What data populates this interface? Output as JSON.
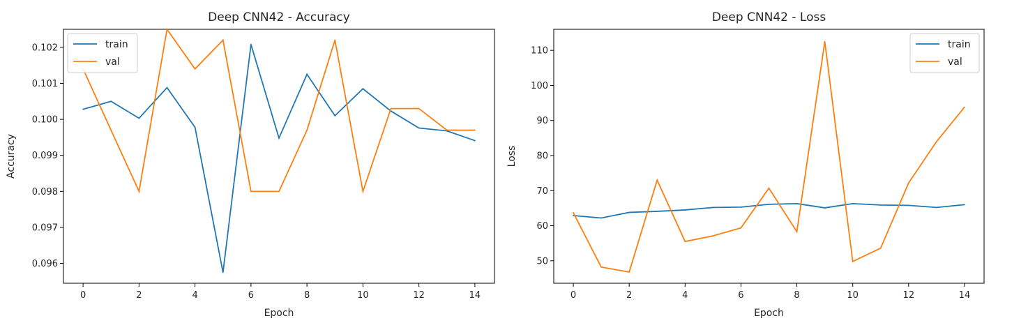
{
  "chart_data": [
    {
      "type": "line",
      "title": "Deep CNN42 - Accuracy",
      "xlabel": "Epoch",
      "ylabel": "Accuracy",
      "x": [
        0,
        1,
        2,
        3,
        4,
        5,
        6,
        7,
        8,
        9,
        10,
        11,
        12,
        13,
        14
      ],
      "xlim": [
        -0.7,
        14.7
      ],
      "ylim": [
        0.09545,
        0.1025
      ],
      "xticks": [
        0,
        2,
        4,
        6,
        8,
        10,
        12,
        14
      ],
      "xtick_labels": [
        "0",
        "2",
        "4",
        "6",
        "8",
        "10",
        "12",
        "14"
      ],
      "yticks": [
        0.096,
        0.097,
        0.098,
        0.099,
        0.1,
        0.101,
        0.102
      ],
      "ytick_labels": [
        "0.096",
        "0.097",
        "0.098",
        "0.099",
        "0.100",
        "0.101",
        "0.102"
      ],
      "grid": false,
      "legend": "top-left",
      "series": [
        {
          "name": "train",
          "color": "#1f77b4",
          "values": [
            0.10028,
            0.1005,
            0.10003,
            0.10088,
            0.09978,
            0.09575,
            0.10208,
            0.09948,
            0.10125,
            0.1001,
            0.10085,
            0.10023,
            0.09976,
            0.09968,
            0.09941
          ]
        },
        {
          "name": "val",
          "color": "#ff7f0e",
          "values": [
            0.1014,
            0.0997,
            0.098,
            0.1025,
            0.1014,
            0.1022,
            0.098,
            0.098,
            0.0997,
            0.1022,
            0.098,
            0.1003,
            0.1003,
            0.0997,
            0.0997
          ]
        }
      ]
    },
    {
      "type": "line",
      "title": "Deep CNN42 - Loss",
      "xlabel": "Epoch",
      "ylabel": "Loss",
      "x": [
        0,
        1,
        2,
        3,
        4,
        5,
        6,
        7,
        8,
        9,
        10,
        11,
        12,
        13,
        14
      ],
      "xlim": [
        -0.7,
        14.7
      ],
      "ylim": [
        43.6,
        116.0
      ],
      "xticks": [
        0,
        2,
        4,
        6,
        8,
        10,
        12,
        14
      ],
      "xtick_labels": [
        "0",
        "2",
        "4",
        "6",
        "8",
        "10",
        "12",
        "14"
      ],
      "yticks": [
        50,
        60,
        70,
        80,
        90,
        100,
        110
      ],
      "ytick_labels": [
        "50",
        "60",
        "70",
        "80",
        "90",
        "100",
        "110"
      ],
      "grid": false,
      "legend": "top-right",
      "series": [
        {
          "name": "train",
          "color": "#1f77b4",
          "values": [
            62.9,
            62.2,
            63.8,
            64.1,
            64.5,
            65.2,
            65.3,
            66.1,
            66.3,
            65.1,
            66.3,
            65.9,
            65.8,
            65.2,
            66.0
          ]
        },
        {
          "name": "val",
          "color": "#ff7f0e",
          "values": [
            63.7,
            48.2,
            46.8,
            73.0,
            55.5,
            57.1,
            59.4,
            70.7,
            58.3,
            112.5,
            49.8,
            53.6,
            72.2,
            84.0,
            93.8
          ]
        }
      ]
    }
  ]
}
